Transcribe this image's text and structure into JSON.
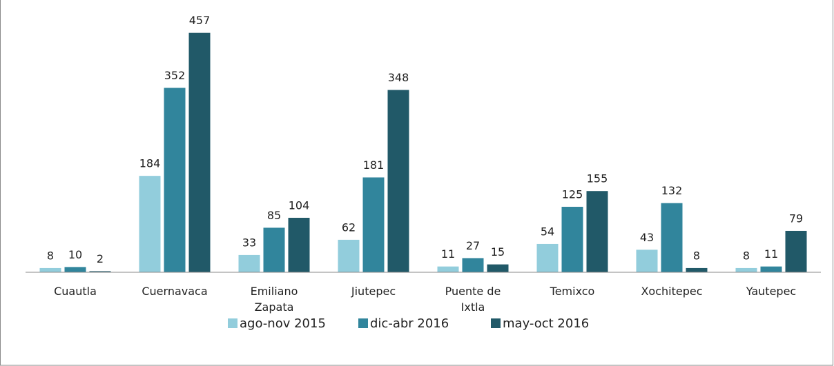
{
  "chart_data": {
    "type": "bar",
    "categories": [
      "Cuautla",
      "Cuernavaca",
      "Emiliano\nZapata",
      "Jiutepec",
      "Puente de\nIxtla",
      "Temixco",
      "Xochitepec",
      "Yautepec"
    ],
    "series": [
      {
        "name": "ago-nov 2015",
        "color": "#92cddc",
        "values": [
          8,
          184,
          33,
          62,
          11,
          54,
          43,
          8
        ]
      },
      {
        "name": "dic-abr 2016",
        "color": "#31859c",
        "values": [
          10,
          352,
          85,
          181,
          27,
          125,
          132,
          11
        ]
      },
      {
        "name": "may-oct 2016",
        "color": "#215968",
        "values": [
          2,
          457,
          104,
          348,
          15,
          155,
          8,
          79
        ]
      }
    ],
    "ylim": [
      0,
      500
    ],
    "legend": "bottom"
  }
}
